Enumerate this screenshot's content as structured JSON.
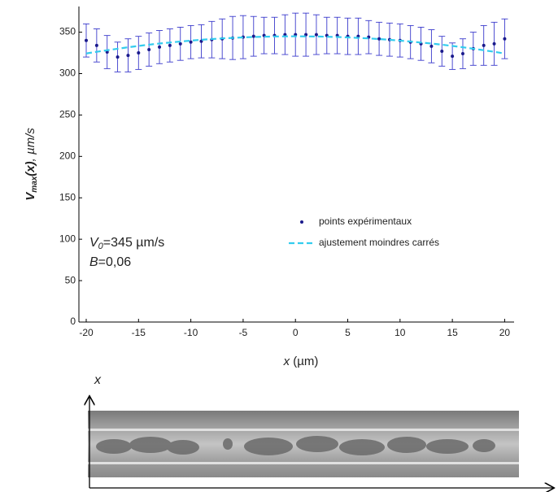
{
  "chart_data": {
    "type": "scatter",
    "x": [
      -20,
      -19,
      -18,
      -17,
      -16,
      -15,
      -14,
      -13,
      -12,
      -11,
      -10,
      -9,
      -8,
      -7,
      -6,
      -5,
      -4,
      -3,
      -2,
      -1,
      0,
      1,
      2,
      3,
      4,
      5,
      6,
      7,
      8,
      9,
      10,
      11,
      12,
      13,
      14,
      15,
      16,
      17,
      18,
      19,
      20
    ],
    "series": [
      {
        "name": "points expérimentaux",
        "color": "#1a1a8c",
        "error_color": "#3a3acc",
        "values": [
          340,
          334,
          326,
          320,
          322,
          325,
          329,
          332,
          334,
          336,
          338,
          339,
          341,
          342,
          343,
          344,
          345,
          346,
          346,
          347,
          347,
          347,
          347,
          346,
          346,
          345,
          345,
          344,
          342,
          341,
          340,
          338,
          336,
          333,
          327,
          321,
          324,
          330,
          334,
          336,
          342
        ],
        "errors": [
          20,
          20,
          20,
          18,
          20,
          20,
          20,
          20,
          20,
          20,
          20,
          20,
          22,
          24,
          26,
          26,
          24,
          22,
          22,
          24,
          26,
          26,
          24,
          22,
          22,
          22,
          22,
          20,
          20,
          20,
          20,
          20,
          20,
          20,
          18,
          16,
          18,
          20,
          24,
          26,
          24
        ]
      },
      {
        "name": "ajustement moindres carrés",
        "color": "#33ccee",
        "dashed": true,
        "values": [
          324.3,
          326.3,
          328.2,
          330.0,
          331.8,
          333.4,
          334.9,
          336.3,
          337.5,
          338.7,
          339.8,
          340.8,
          341.7,
          342.5,
          343.1,
          343.7,
          344.2,
          344.5,
          344.8,
          344.9,
          345.0,
          344.9,
          344.8,
          344.5,
          344.2,
          343.7,
          343.1,
          342.5,
          341.7,
          340.8,
          339.8,
          338.7,
          337.5,
          336.3,
          334.9,
          333.4,
          331.8,
          330.0,
          328.2,
          326.3,
          324.3
        ]
      }
    ],
    "xlim": [
      -20.7,
      20.9
    ],
    "ylim": [
      0,
      381
    ],
    "xticks": [
      -20,
      -15,
      -10,
      -5,
      0,
      5,
      10,
      15,
      20
    ],
    "yticks": [
      0,
      50,
      100,
      150,
      200,
      250,
      300,
      350
    ],
    "grid": false,
    "xlabel": {
      "var": "x",
      "unit": " (µm)"
    },
    "ylabel": {
      "var": "V",
      "sub": "max",
      "arg": "(x)",
      "unit": ", µm/s"
    },
    "annotations": [
      {
        "var": "V",
        "sub": "0",
        "rest": "=345 µm/s"
      },
      {
        "var": "B",
        "rest": "=0,06"
      }
    ]
  },
  "image_axis_label": "x"
}
